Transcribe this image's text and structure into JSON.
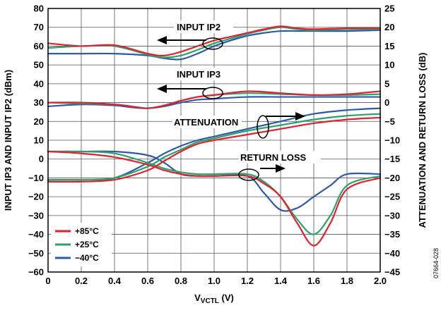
{
  "colors": {
    "hot": "#e2212e",
    "room": "#29a36a",
    "cold": "#2e5aa8",
    "grid": "#555555",
    "axis": "#000000"
  },
  "chart_data": {
    "type": "line",
    "xlabel_main": "V",
    "xlabel_sub": "VCTL",
    "xlabel_unit": " (V)",
    "ylabel_left": "INPUT IP3 AND INPUT IP2 (dBm)",
    "ylabel_right": "ATTENUATION AND RETURN LOSS (dB)",
    "xlim": [
      0,
      2.0
    ],
    "ylim_left": [
      -60,
      80
    ],
    "ylim_right": [
      -45,
      25
    ],
    "x_ticks": [
      "0",
      "0.2",
      "0.4",
      "0.6",
      "0.8",
      "1.0",
      "1.2",
      "1.4",
      "1.6",
      "1.8",
      "2.0"
    ],
    "y_left_ticks": [
      "80",
      "70",
      "60",
      "50",
      "40",
      "30",
      "20",
      "10",
      "0",
      "−10",
      "−20",
      "−30",
      "−40",
      "−50",
      "−60"
    ],
    "y_right_ticks": [
      "25",
      "20",
      "15",
      "10",
      "5",
      "0",
      "−5",
      "−10",
      "−15",
      "−20",
      "−25",
      "−30",
      "−35",
      "−40",
      "−45"
    ],
    "grid": true,
    "legend_position": "bottom-left",
    "legend": [
      {
        "label": "+85°C",
        "color": "#e2212e"
      },
      {
        "label": "+25°C",
        "color": "#29a36a"
      },
      {
        "label": "−40°C",
        "color": "#2e5aa8"
      }
    ],
    "annotations": [
      {
        "text": "INPUT IP2"
      },
      {
        "text": "INPUT IP3"
      },
      {
        "text": "ATTENUATION"
      },
      {
        "text": "RETURN LOSS"
      }
    ],
    "figure_id": "07664-028",
    "curves": [
      {
        "group": "INPUT IP2",
        "axis": "left",
        "temp": "+85°C",
        "x": [
          0,
          0.2,
          0.4,
          0.6,
          0.7,
          0.8,
          0.9,
          1.0,
          1.1,
          1.2,
          1.3,
          1.4,
          1.5,
          1.6,
          1.8,
          2.0
        ],
        "y": [
          61.5,
          60,
          60.5,
          56,
          55,
          57,
          60,
          63,
          65,
          67,
          69,
          70.5,
          69.5,
          69,
          69.5,
          69.5
        ]
      },
      {
        "group": "INPUT IP2",
        "axis": "left",
        "temp": "+25°C",
        "x": [
          0,
          0.2,
          0.4,
          0.6,
          0.7,
          0.8,
          0.9,
          1.0,
          1.1,
          1.2,
          1.3,
          1.4,
          1.5,
          1.6,
          1.8,
          2.0
        ],
        "y": [
          59,
          60,
          60,
          55.5,
          54,
          55,
          58,
          61.5,
          64,
          66.5,
          68.5,
          70,
          69,
          68.5,
          69,
          69
        ]
      },
      {
        "group": "INPUT IP2",
        "axis": "left",
        "temp": "−40°C",
        "x": [
          0,
          0.2,
          0.4,
          0.6,
          0.7,
          0.8,
          0.9,
          1.0,
          1.1,
          1.2,
          1.3,
          1.4,
          1.5,
          1.6,
          1.8,
          2.0
        ],
        "y": [
          56,
          56,
          56,
          55,
          53.5,
          53,
          56,
          60,
          63,
          65.5,
          67,
          68,
          68,
          68,
          68,
          68.5
        ]
      },
      {
        "group": "INPUT IP3",
        "axis": "left",
        "temp": "+85°C",
        "x": [
          0,
          0.2,
          0.4,
          0.5,
          0.6,
          0.7,
          0.8,
          0.9,
          1.0,
          1.2,
          1.4,
          1.6,
          1.8,
          2.0
        ],
        "y": [
          30,
          30,
          29,
          28,
          27,
          28.5,
          31,
          33,
          34,
          36,
          35,
          34,
          34.5,
          36
        ]
      },
      {
        "group": "INPUT IP3",
        "axis": "left",
        "temp": "+25°C",
        "x": [
          0,
          0.2,
          0.4,
          0.5,
          0.6,
          0.7,
          0.8,
          0.9,
          1.0,
          1.2,
          1.4,
          1.6,
          1.8,
          2.0
        ],
        "y": [
          30,
          29.5,
          29,
          28,
          27,
          28.5,
          31,
          33,
          34,
          35,
          34.5,
          34,
          34,
          34.5
        ]
      },
      {
        "group": "INPUT IP3",
        "axis": "left",
        "temp": "−40°C",
        "x": [
          0,
          0.2,
          0.4,
          0.5,
          0.6,
          0.7,
          0.8,
          0.9,
          1.0,
          1.2,
          1.4,
          1.6,
          1.8,
          2.0
        ],
        "y": [
          28,
          29,
          28.5,
          27.5,
          27,
          28,
          30,
          31.5,
          32,
          33,
          33,
          33,
          33,
          33
        ]
      },
      {
        "group": "ATTENUATION",
        "axis": "right",
        "temp": "+85°C",
        "x": [
          0,
          0.2,
          0.4,
          0.6,
          0.7,
          0.8,
          0.9,
          1.0,
          1.2,
          1.4,
          1.6,
          1.8,
          2.0
        ],
        "y": [
          -21,
          -21,
          -20.5,
          -18,
          -15.5,
          -13,
          -11,
          -10,
          -8.5,
          -7,
          -5.5,
          -4.5,
          -4
        ]
      },
      {
        "group": "ATTENUATION",
        "axis": "right",
        "temp": "+25°C",
        "x": [
          0,
          0.2,
          0.4,
          0.6,
          0.7,
          0.8,
          0.9,
          1.0,
          1.2,
          1.4,
          1.6,
          1.8,
          2.0
        ],
        "y": [
          -20.5,
          -20.5,
          -20,
          -17,
          -14.5,
          -12.5,
          -10.5,
          -9.5,
          -7.5,
          -6,
          -4.5,
          -3.5,
          -3
        ]
      },
      {
        "group": "ATTENUATION",
        "axis": "right",
        "temp": "−40°C",
        "x": [
          0,
          0.2,
          0.4,
          0.6,
          0.7,
          0.8,
          0.9,
          1.0,
          1.2,
          1.4,
          1.6,
          1.8,
          2.0
        ],
        "y": [
          -20.5,
          -20.5,
          -20,
          -16,
          -13.5,
          -11.5,
          -10,
          -9,
          -7,
          -5,
          -3,
          -2,
          -1.5
        ]
      },
      {
        "group": "RETURN LOSS",
        "axis": "right",
        "temp": "+85°C",
        "x": [
          0,
          0.2,
          0.4,
          0.6,
          0.7,
          0.8,
          0.9,
          1.0,
          1.2,
          1.3,
          1.4,
          1.5,
          1.6,
          1.7,
          1.8,
          2.0
        ],
        "y": [
          -13,
          -13.5,
          -14.5,
          -16.5,
          -18,
          -19,
          -19.5,
          -19.5,
          -19.5,
          -21.5,
          -25,
          -32,
          -38,
          -32,
          -23,
          -20
        ]
      },
      {
        "group": "RETURN LOSS",
        "axis": "right",
        "temp": "+25°C",
        "x": [
          0,
          0.2,
          0.4,
          0.6,
          0.7,
          0.8,
          0.9,
          1.0,
          1.2,
          1.3,
          1.4,
          1.5,
          1.6,
          1.7,
          1.8,
          2.0
        ],
        "y": [
          -13,
          -13,
          -13.5,
          -16,
          -17.5,
          -18.5,
          -19,
          -19,
          -19,
          -21,
          -25,
          -31,
          -35,
          -30,
          -22,
          -19.5
        ]
      },
      {
        "group": "RETURN LOSS",
        "axis": "right",
        "temp": "−40°C",
        "x": [
          0,
          0.2,
          0.4,
          0.6,
          0.7,
          0.8,
          0.9,
          1.0,
          1.2,
          1.3,
          1.4,
          1.5,
          1.6,
          1.7,
          1.8,
          2.0
        ],
        "y": [
          -13,
          -13,
          -13,
          -14,
          -16,
          -19,
          -19.5,
          -19.5,
          -19.5,
          -24,
          -28.5,
          -28,
          -25,
          -22,
          -19,
          -19
        ]
      }
    ]
  }
}
